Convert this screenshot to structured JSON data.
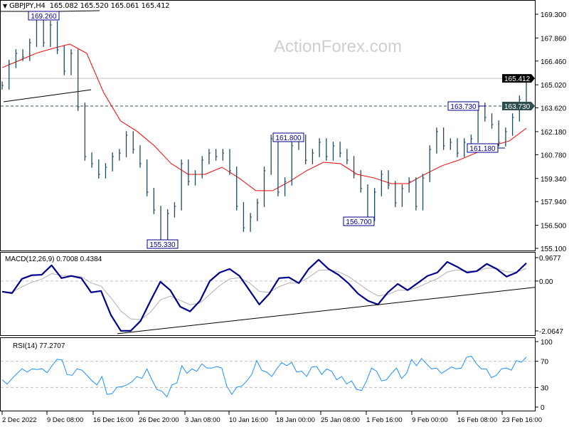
{
  "header": {
    "symbol": "GBPJPY,H4",
    "open": "165.082",
    "high": "165.520",
    "low": "165.061",
    "close": "165.412"
  },
  "watermark": "ActionForex.com",
  "colors": {
    "bars": "#1d4b5c",
    "ma": "#ff0000",
    "macd": "#00008b",
    "signal": "#b0b0b0",
    "rsi": "#1e90ff",
    "label_border": "#00008b",
    "current_price_bg": "#000000",
    "level_bg": "#2f4f4f"
  },
  "chart_data": [
    {
      "type": "bar",
      "title": "GBPJPY,H4",
      "ylim": [
        155.1,
        169.3
      ],
      "y_ticks": [
        "169.300",
        "167.860",
        "166.460",
        "165.020",
        "163.620",
        "162.180",
        "160.780",
        "159.340",
        "157.940",
        "156.500",
        "155.100"
      ],
      "x_ticks": [
        "2 Dec 2022",
        "9 Dec 08:00",
        "16 Dec 16:00",
        "26 Dec 20:00",
        "3 Jan 08:00",
        "10 Jan 16:00",
        "18 Jan 00:00",
        "25 Jan 08:00",
        "1 Feb 16:00",
        "9 Feb 00:00",
        "16 Feb 08:00",
        "23 Feb 16:00"
      ],
      "close": [
        164.98,
        166.28,
        166.93,
        166.71,
        167.57,
        169.21,
        167.57,
        168.65,
        167.14,
        165.85,
        166.93,
        163.69,
        160.67,
        160.24,
        159.59,
        160.02,
        160.67,
        160.88,
        161.96,
        161.1,
        160.24,
        158.51,
        157.43,
        155.49,
        157.22,
        157.65,
        160.24,
        159.16,
        159.59,
        160.45,
        160.88,
        160.67,
        160.88,
        159.81,
        157.65,
        156.35,
        157.0,
        157.86,
        159.81,
        161.75,
        158.51,
        159.16,
        161.32,
        161.75,
        160.45,
        160.88,
        161.53,
        160.67,
        161.32,
        160.88,
        160.45,
        159.59,
        158.73,
        157.0,
        158.51,
        159.59,
        158.94,
        157.86,
        158.73,
        159.16,
        157.65,
        159.37,
        161.1,
        162.18,
        161.32,
        161.53,
        160.88,
        161.53,
        161.75,
        163.69,
        163.04,
        162.61,
        161.53,
        162.18,
        163.04,
        164.12,
        165.41
      ],
      "moving_average": [
        166.06,
        166.49,
        166.93,
        167.23,
        167.49,
        166.93,
        164.55,
        162.83,
        162.18,
        161.32,
        160.24,
        159.59,
        159.59,
        160.02,
        159.37,
        158.6,
        158.6,
        159.16,
        159.81,
        160.32,
        160.24,
        159.59,
        159.37,
        159.03,
        159.03,
        159.59,
        160.11,
        160.45,
        160.88,
        161.32,
        161.62,
        162.39
      ],
      "current_price": "165.412",
      "level_line": "163.730",
      "trendline": {
        "from": 163.99,
        "to": 164.72
      },
      "annotations": [
        {
          "text": "169.260",
          "value": 169.26
        },
        {
          "text": "155.330",
          "value": 155.33
        },
        {
          "text": "161.800",
          "value": 161.8
        },
        {
          "text": "156.700",
          "value": 156.7
        },
        {
          "text": "163.730",
          "value": 163.73
        },
        {
          "text": "161.180",
          "value": 161.18
        }
      ]
    },
    {
      "type": "line",
      "title": "MACD(12,26,9) 0.7008 0.4384",
      "ylim": [
        -2.0647,
        0.9677
      ],
      "y_ticks": [
        "0.9677",
        "0.00",
        "-2.0647"
      ],
      "macd": [
        -0.44,
        -0.5,
        0.09,
        0.24,
        0.26,
        0.65,
        0.12,
        0.21,
        0.12,
        -0.47,
        -0.41,
        -1.41,
        -2.06,
        -2.06,
        -1.65,
        -0.82,
        -0.03,
        -0.38,
        -1.06,
        -1.26,
        -0.82,
        0,
        0.35,
        0.5,
        0.21,
        -0.38,
        -0.97,
        -0.53,
        0.12,
        0.15,
        -0.09,
        0.5,
        0.88,
        0.5,
        0.26,
        -0.09,
        -0.53,
        -0.82,
        -0.97,
        -0.47,
        -0.12,
        -0.38,
        -0.09,
        0.21,
        0.35,
        0.79,
        0.59,
        0.35,
        0.41,
        0.71,
        0.5,
        0.18,
        0.35,
        0.74
      ],
      "trendline": {
        "from": -2.18,
        "to": -0.26
      }
    },
    {
      "type": "line",
      "title": "RSI(14) 77.2707",
      "ylim": [
        0,
        100
      ],
      "y_ticks": [
        "100",
        "70",
        "30",
        "0"
      ],
      "levels": [
        70,
        30
      ],
      "values": [
        41.7,
        35,
        43.7,
        51.5,
        58.6,
        53.4,
        58.3,
        57.3,
        58.6,
        52.4,
        63.2,
        73,
        72,
        49.8,
        48.5,
        58.3,
        56.3,
        48.5,
        40,
        33.9,
        46.7,
        19.3,
        20.5,
        30.3,
        31.3,
        33.9,
        38.7,
        46.7,
        43.7,
        58.3,
        41.7,
        27,
        24.1,
        15.7,
        33.9,
        36.8,
        63.2,
        51.5,
        58.3,
        54.7,
        66.1,
        59.6,
        59.6,
        61.9,
        59.6,
        32,
        19.3,
        30.3,
        32,
        40,
        49.8,
        71,
        56.3,
        53.4,
        46.7,
        58.3,
        68,
        63.2,
        68.3,
        53.4,
        54.7,
        46.7,
        61.2,
        61.9,
        49.8,
        58.3,
        54.7,
        41.7,
        46.7,
        35.2,
        40,
        27,
        25.4,
        40,
        59.6,
        54.7,
        40,
        41.7,
        51.5,
        59.6,
        43.7,
        51.5,
        72.6,
        63.2,
        74.2,
        66.1,
        58.3,
        59.6,
        51.5,
        56.3,
        61.2,
        58.3,
        59.6,
        75.9,
        77.8,
        66.1,
        58.3,
        58.3,
        44.9,
        48.5,
        58.3,
        59.6,
        56.3,
        71,
        68.3,
        76.5
      ]
    }
  ]
}
